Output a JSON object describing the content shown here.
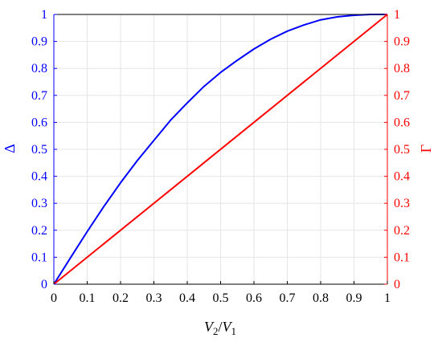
{
  "chart_data": {
    "type": "line",
    "xlabel": {
      "var1": "V",
      "sub1": "2",
      "slash": "/",
      "var2": "V",
      "sub2": "1"
    },
    "ylabel_left": "Δ",
    "ylabel_right": "Γ",
    "xlim": [
      0,
      1
    ],
    "ylim_left": [
      0,
      1
    ],
    "ylim_right": [
      0,
      1
    ],
    "grid": true,
    "x_ticks": [
      "0",
      "0.1",
      "0.2",
      "0.3",
      "0.4",
      "0.5",
      "0.6",
      "0.7",
      "0.8",
      "0.9",
      "1"
    ],
    "y_ticks_left": [
      "0",
      "0.1",
      "0.2",
      "0.3",
      "0.4",
      "0.5",
      "0.6",
      "0.7",
      "0.8",
      "0.9",
      "1"
    ],
    "y_ticks_right": [
      "0",
      "0.1",
      "0.2",
      "0.3",
      "0.4",
      "0.5",
      "0.6",
      "0.7",
      "0.8",
      "0.9",
      "1"
    ],
    "series": [
      {
        "axis": "left",
        "color": "#0000ff",
        "x": [
          0,
          0.05,
          0.1,
          0.15,
          0.2,
          0.25,
          0.3,
          0.35,
          0.4,
          0.45,
          0.5,
          0.55,
          0.6,
          0.65,
          0.7,
          0.75,
          0.8,
          0.85,
          0.9,
          0.95,
          1
        ],
        "y": [
          0,
          0.098,
          0.195,
          0.288,
          0.376,
          0.458,
          0.533,
          0.608,
          0.672,
          0.733,
          0.785,
          0.83,
          0.872,
          0.908,
          0.938,
          0.961,
          0.98,
          0.991,
          0.997,
          1.0,
          1.0
        ]
      },
      {
        "axis": "right",
        "color": "#ff0000",
        "x": [
          0,
          1
        ],
        "y": [
          0,
          1
        ]
      }
    ],
    "colors": {
      "left_axis": "#0000ff",
      "right_axis": "#ff0000",
      "bottom_axis": "#000000",
      "grid": "#e6e6e6"
    }
  }
}
